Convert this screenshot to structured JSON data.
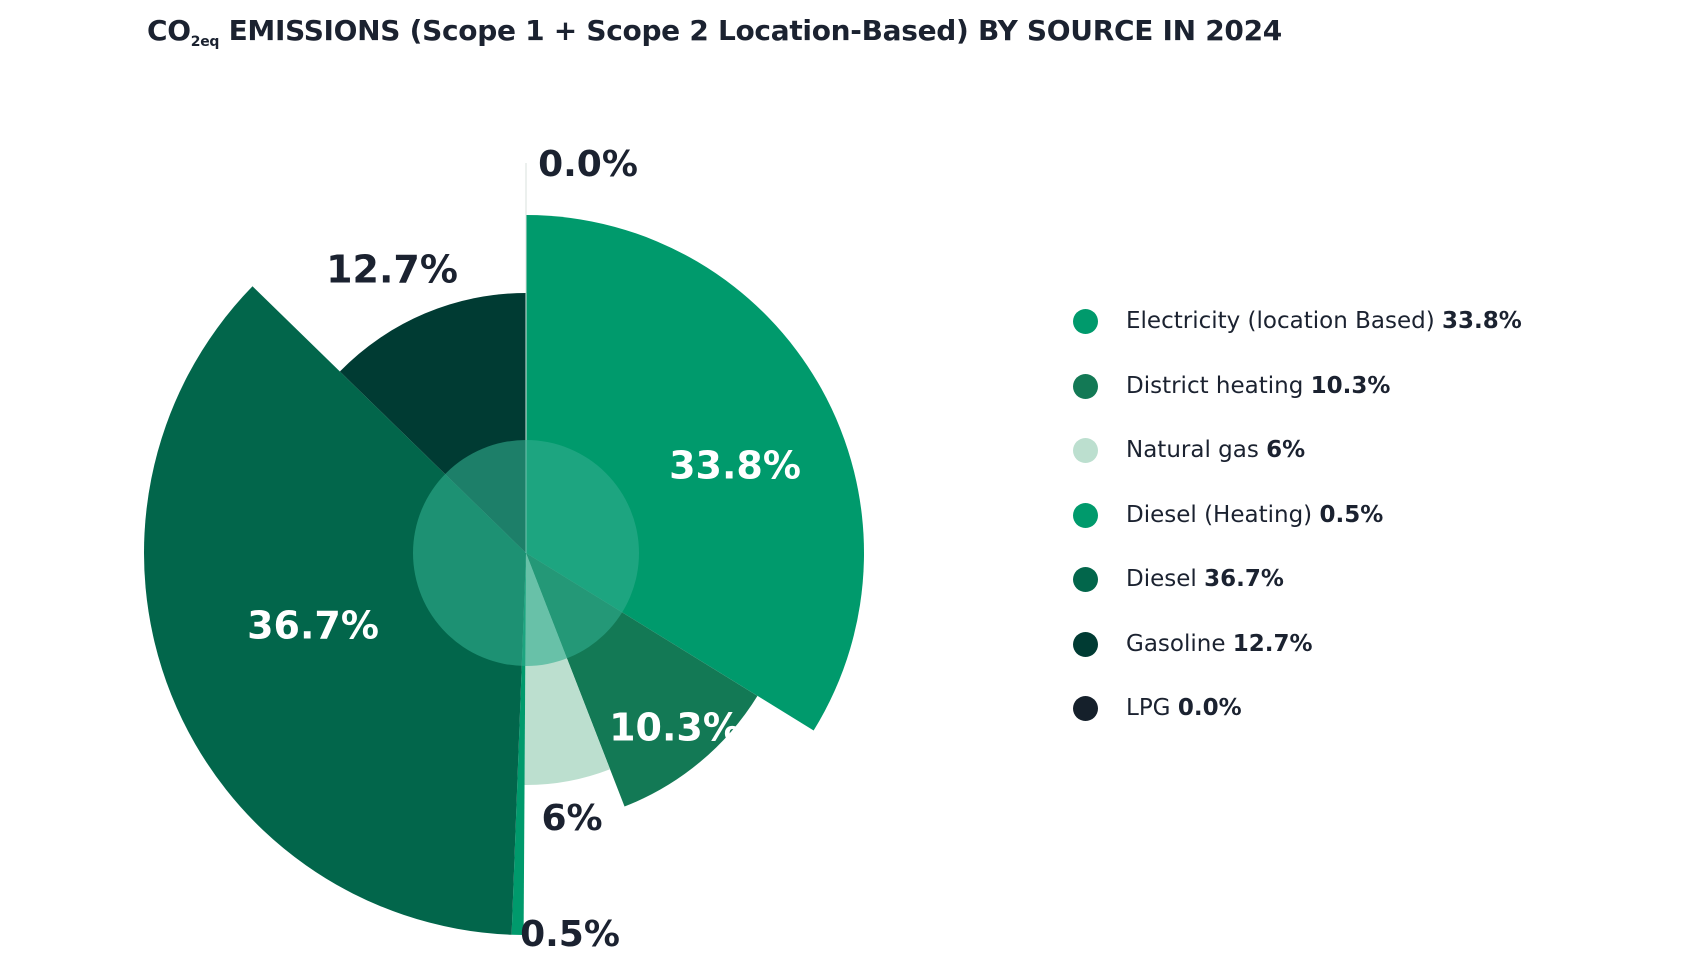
{
  "title": {
    "prefix": "CO",
    "subscript": "2eq",
    "suffix": " EMISSIONS (Scope 1 + Scope 2 Location-Based) BY SOURCE IN 2024"
  },
  "chart_data": {
    "type": "pie",
    "title": "CO2eq EMISSIONS (Scope 1 + Scope 2 Location-Based) BY SOURCE IN 2024",
    "variant": "variable-radius pie",
    "legend_position": "right",
    "slices": [
      {
        "name": "Electricity (location Based)",
        "value": 33.8,
        "label": "33.8%",
        "color": "#009a6c",
        "label_color": "#ffffff"
      },
      {
        "name": "District heating",
        "value": 10.3,
        "label": "10.3%",
        "color": "#137955",
        "label_color": "#ffffff"
      },
      {
        "name": "Natural gas",
        "value": 6,
        "label": "6%",
        "color": "#bcdfcf",
        "label_color": "#1b2230"
      },
      {
        "name": "Diesel (Heating)",
        "value": 0.5,
        "label": "0.5%",
        "color": "#009a6c",
        "label_color": "#1b2230"
      },
      {
        "name": "Diesel",
        "value": 36.7,
        "label": "36.7%",
        "color": "#02664b",
        "label_color": "#ffffff"
      },
      {
        "name": "Gasoline",
        "value": 12.7,
        "label": "12.7%",
        "color": "#003b33",
        "label_color": "#1b2230"
      },
      {
        "name": "LPG",
        "value": 0.0,
        "label": "0.0%",
        "color": "#15202b",
        "label_color": "#1b2230"
      }
    ],
    "legend": [
      {
        "name": "Electricity (location Based)",
        "value_label": "33.8%",
        "color": "#009a6c"
      },
      {
        "name": "District heating",
        "value_label": "10.3%",
        "color": "#137955"
      },
      {
        "name": "Natural gas",
        "value_label": "6%",
        "color": "#bcdfcf"
      },
      {
        "name": "Diesel (Heating)",
        "value_label": "0.5%",
        "color": "#009a6c"
      },
      {
        "name": "Diesel",
        "value_label": "36.7%",
        "color": "#02664b"
      },
      {
        "name": "Gasoline",
        "value_label": "12.7%",
        "color": "#003b33"
      },
      {
        "name": "LPG",
        "value_label": "0.0%",
        "color": "#15202b"
      }
    ],
    "center_circle_color": "#30ae8d"
  }
}
